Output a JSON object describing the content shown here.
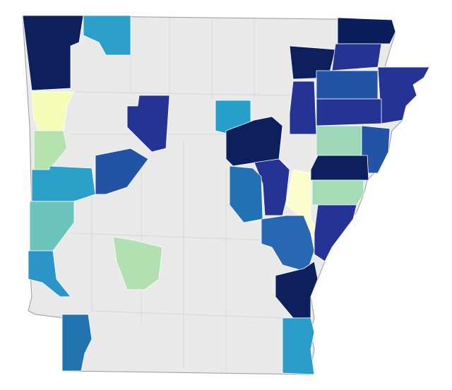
{
  "regions": [
    {
      "color": "#0d1f5c"
    },
    {
      "color": "#2c9fca"
    },
    {
      "color": "#f5fcb8"
    },
    {
      "color": "#b5e2ae"
    },
    {
      "color": "#2aa0c8"
    },
    {
      "color": "#6cc5bd"
    },
    {
      "color": "#2b95c8"
    },
    {
      "color": "#2274b0"
    },
    {
      "color": "#253494"
    },
    {
      "color": "#2353a5"
    },
    {
      "color": "#b2e0b0"
    },
    {
      "color": "#279fcb"
    },
    {
      "color": "#0d1f5c"
    },
    {
      "color": "#253494"
    },
    {
      "color": "#2271b3"
    },
    {
      "color": "#fbfdcc"
    },
    {
      "color": "#2867b2"
    },
    {
      "color": "#0d1f5c"
    },
    {
      "color": "#2a9dc9"
    },
    {
      "color": "#0b1e5c"
    },
    {
      "color": "#0d1f5c"
    },
    {
      "color": "#253494"
    },
    {
      "color": "#253494"
    },
    {
      "color": "#2353a5"
    },
    {
      "color": "#253494"
    },
    {
      "color": "#253494"
    },
    {
      "color": "#9dd8b8"
    },
    {
      "color": "#2353a5"
    },
    {
      "color": "#0d1f5c"
    },
    {
      "color": "#a5dcb3"
    },
    {
      "color": "#253494"
    }
  ]
}
